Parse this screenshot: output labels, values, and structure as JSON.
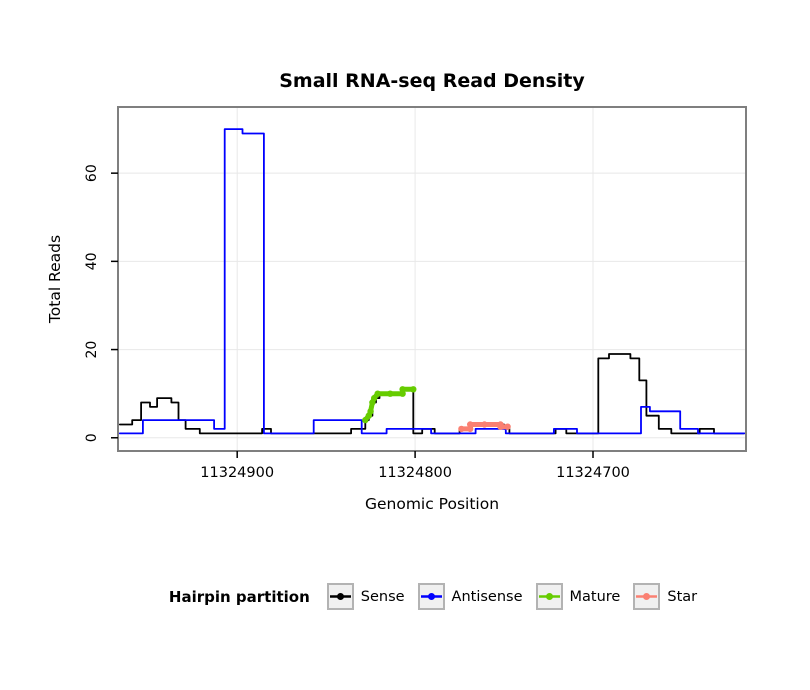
{
  "chart_data": {
    "type": "line",
    "title": "Small RNA-seq Read Density",
    "xlabel": "Genomic Position",
    "ylabel": "Total Reads",
    "legend_title": "Hairpin partition",
    "legend_position": "bottom",
    "grid": true,
    "x_reversed": true,
    "xlim": [
      11324967,
      11324614
    ],
    "ylim": [
      -3,
      75
    ],
    "xticks": [
      11324900,
      11324800,
      11324700
    ],
    "yticks": [
      0,
      20,
      40,
      60
    ],
    "series": [
      {
        "name": "Sense",
        "color": "#000000",
        "width": 1.8,
        "marker": false,
        "points": [
          [
            11324966,
            3
          ],
          [
            11324959,
            3
          ],
          [
            11324959,
            4
          ],
          [
            11324954,
            4
          ],
          [
            11324954,
            8
          ],
          [
            11324949,
            8
          ],
          [
            11324949,
            7
          ],
          [
            11324945,
            7
          ],
          [
            11324945,
            9
          ],
          [
            11324937,
            9
          ],
          [
            11324937,
            8
          ],
          [
            11324933,
            8
          ],
          [
            11324933,
            4
          ],
          [
            11324929,
            4
          ],
          [
            11324929,
            2
          ],
          [
            11324921,
            2
          ],
          [
            11324921,
            1
          ],
          [
            11324886,
            1
          ],
          [
            11324886,
            2
          ],
          [
            11324881,
            2
          ],
          [
            11324881,
            1
          ],
          [
            11324836,
            1
          ],
          [
            11324836,
            2
          ],
          [
            11324828,
            2
          ],
          [
            11324828,
            4
          ],
          [
            11324826,
            4
          ],
          [
            11324826,
            5
          ],
          [
            11324824,
            5
          ],
          [
            11324824,
            8
          ],
          [
            11324822,
            8
          ],
          [
            11324822,
            9
          ],
          [
            11324820,
            9
          ],
          [
            11324820,
            10
          ],
          [
            11324807,
            10
          ],
          [
            11324807,
            11
          ],
          [
            11324801,
            11
          ],
          [
            11324801,
            1
          ],
          [
            11324796,
            1
          ],
          [
            11324796,
            2
          ],
          [
            11324789,
            2
          ],
          [
            11324789,
            1
          ],
          [
            11324775,
            1
          ],
          [
            11324775,
            2
          ],
          [
            11324768,
            2
          ],
          [
            11324768,
            3
          ],
          [
            11324750,
            3
          ],
          [
            11324750,
            2
          ],
          [
            11324747,
            2
          ],
          [
            11324747,
            1
          ],
          [
            11324721,
            1
          ],
          [
            11324721,
            2
          ],
          [
            11324715,
            2
          ],
          [
            11324715,
            1
          ],
          [
            11324697,
            1
          ],
          [
            11324697,
            18
          ],
          [
            11324691,
            18
          ],
          [
            11324691,
            19
          ],
          [
            11324679,
            19
          ],
          [
            11324679,
            18
          ],
          [
            11324674,
            18
          ],
          [
            11324674,
            13
          ],
          [
            11324670,
            13
          ],
          [
            11324670,
            5
          ],
          [
            11324663,
            5
          ],
          [
            11324663,
            2
          ],
          [
            11324656,
            2
          ],
          [
            11324656,
            1
          ],
          [
            11324640,
            1
          ],
          [
            11324640,
            2
          ],
          [
            11324632,
            2
          ],
          [
            11324632,
            1
          ],
          [
            11324615,
            1
          ]
        ]
      },
      {
        "name": "Antisense",
        "color": "#0000FF",
        "width": 1.8,
        "marker": false,
        "points": [
          [
            11324966,
            1
          ],
          [
            11324953,
            1
          ],
          [
            11324953,
            4
          ],
          [
            11324913,
            4
          ],
          [
            11324913,
            2
          ],
          [
            11324907,
            2
          ],
          [
            11324907,
            70
          ],
          [
            11324897,
            70
          ],
          [
            11324897,
            69
          ],
          [
            11324885,
            69
          ],
          [
            11324885,
            1
          ],
          [
            11324857,
            1
          ],
          [
            11324857,
            4
          ],
          [
            11324830,
            4
          ],
          [
            11324830,
            1
          ],
          [
            11324816,
            1
          ],
          [
            11324816,
            2
          ],
          [
            11324791,
            2
          ],
          [
            11324791,
            1
          ],
          [
            11324766,
            1
          ],
          [
            11324766,
            2
          ],
          [
            11324749,
            2
          ],
          [
            11324749,
            1
          ],
          [
            11324722,
            1
          ],
          [
            11324722,
            2
          ],
          [
            11324709,
            2
          ],
          [
            11324709,
            1
          ],
          [
            11324673,
            1
          ],
          [
            11324673,
            7
          ],
          [
            11324668,
            7
          ],
          [
            11324668,
            6
          ],
          [
            11324651,
            6
          ],
          [
            11324651,
            2
          ],
          [
            11324641,
            2
          ],
          [
            11324641,
            1
          ],
          [
            11324615,
            1
          ]
        ]
      },
      {
        "name": "Mature",
        "color": "#66CC00",
        "width": 5,
        "marker": true,
        "points": [
          [
            11324828,
            4
          ],
          [
            11324826,
            5
          ],
          [
            11324825,
            6
          ],
          [
            11324824,
            8
          ],
          [
            11324823,
            9
          ],
          [
            11324821,
            10
          ],
          [
            11324814,
            10
          ],
          [
            11324807,
            10
          ],
          [
            11324807,
            11
          ],
          [
            11324801,
            11
          ]
        ]
      },
      {
        "name": "Star",
        "color": "#FA8072",
        "width": 5,
        "marker": true,
        "points": [
          [
            11324774,
            2
          ],
          [
            11324769,
            2
          ],
          [
            11324769,
            3
          ],
          [
            11324761,
            3
          ],
          [
            11324752,
            3
          ],
          [
            11324752,
            2.5
          ],
          [
            11324748,
            2.5
          ]
        ]
      }
    ]
  }
}
